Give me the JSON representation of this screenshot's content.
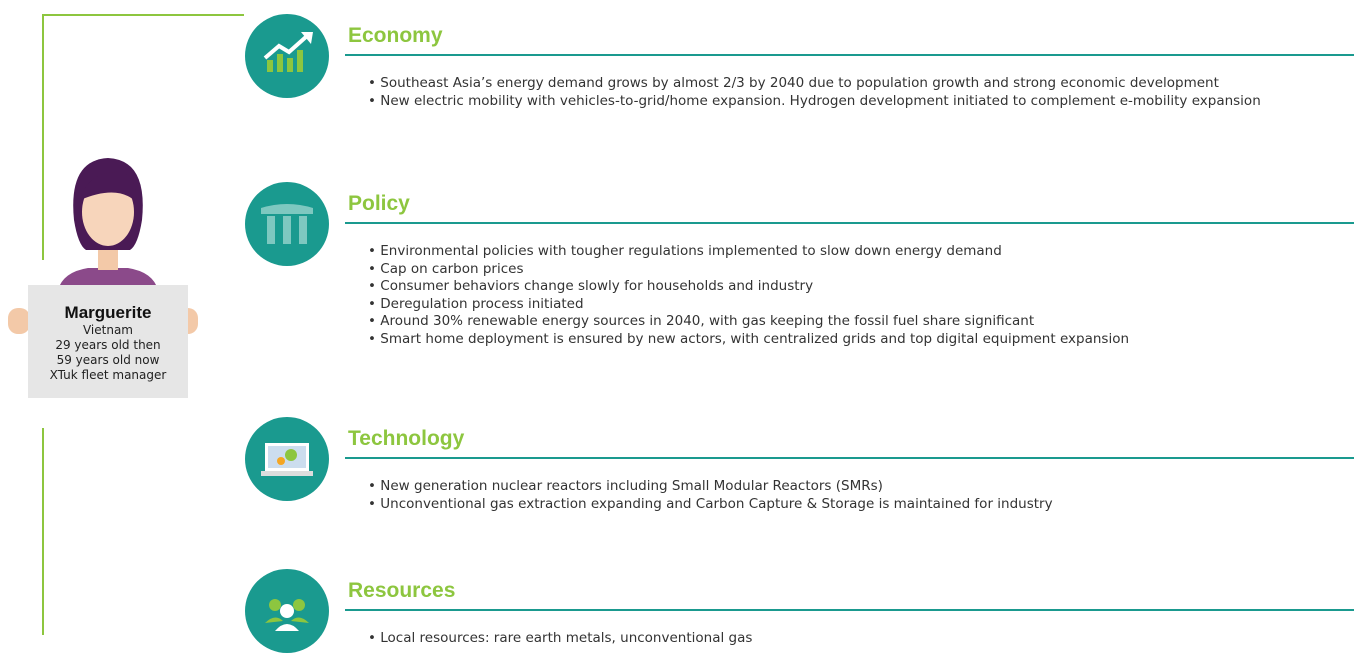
{
  "persona": {
    "name": "Marguerite",
    "lines": [
      "Vietnam",
      "29 years old then",
      "59 years old now",
      "XTuk fleet manager"
    ]
  },
  "sections": [
    {
      "title": "Economy",
      "bullets": [
        "Southeast Asia’s energy demand grows by almost 2/3 by 2040 due to population growth and strong economic development",
        "New electric mobility with vehicles-to-grid/home expansion. Hydrogen development initiated to complement e-mobility expansion"
      ]
    },
    {
      "title": "Policy",
      "bullets": [
        "Environmental policies with tougher regulations implemented to slow down energy demand",
        "Cap on carbon prices",
        "Consumer behaviors change slowly for households and industry",
        "Deregulation process initiated",
        "Around 30% renewable energy sources in 2040, with gas keeping the fossil fuel share significant",
        "Smart home deployment is ensured by new actors, with centralized grids and top digital equipment expansion"
      ]
    },
    {
      "title": "Technology",
      "bullets": [
        "New generation nuclear reactors including Small Modular Reactors (SMRs)",
        "Unconventional gas extraction expanding and Carbon Capture & Storage is maintained for industry"
      ]
    },
    {
      "title": "Resources",
      "bullets": [
        "Local resources: rare earth metals, unconventional gas"
      ]
    }
  ]
}
